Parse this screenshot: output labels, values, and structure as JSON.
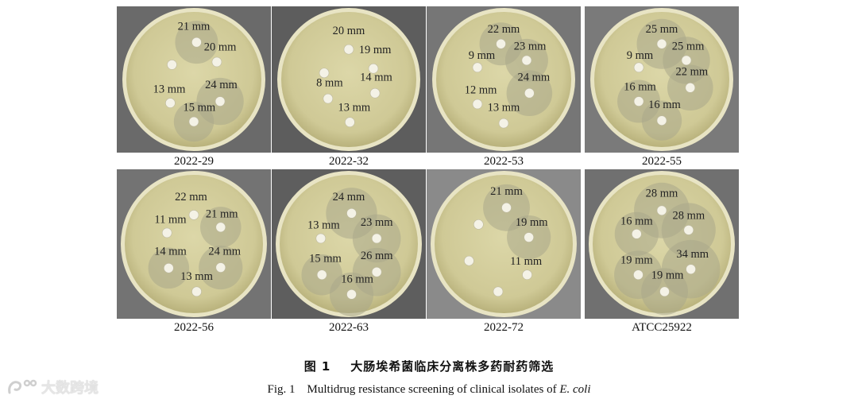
{
  "figure": {
    "caption_cn_label": "图 1",
    "caption_cn_title": "大肠埃希菌临床分离株多药耐药筛选",
    "caption_en_label": "Fig. 1",
    "caption_en_title_prefix": "Multidrug resistance screening of clinical isolates of ",
    "caption_en_title_italic": "E. coli",
    "watermark_text": "大数跨境",
    "watermark_icon": "brand-logo-icon"
  },
  "plates": [
    {
      "label": "2022-29",
      "zones": [
        {
          "text": "21 mm",
          "dx": 0.05,
          "dy": -0.68,
          "tx": 0.0,
          "ty": -0.98,
          "zone": 0.3
        },
        {
          "text": "20 mm",
          "dx": 0.42,
          "dy": -0.32,
          "tx": 0.48,
          "ty": -0.6,
          "zone": 0.0
        },
        {
          "text": "",
          "dx": -0.4,
          "dy": -0.27,
          "tx": 0,
          "ty": 0,
          "zone": 0.0
        },
        {
          "text": "13 mm",
          "dx": -0.43,
          "dy": 0.43,
          "tx": -0.45,
          "ty": 0.17,
          "zone": 0.0
        },
        {
          "text": "24 mm",
          "dx": 0.48,
          "dy": 0.4,
          "tx": 0.5,
          "ty": 0.09,
          "zone": 0.33
        },
        {
          "text": "15 mm",
          "dx": 0.0,
          "dy": 0.77,
          "tx": 0.1,
          "ty": 0.5,
          "zone": 0.28
        }
      ]
    },
    {
      "label": "2022-32",
      "zones": [
        {
          "text": "20 mm",
          "dx": 0.0,
          "dy": -0.55,
          "tx": 0.0,
          "ty": -0.9,
          "zone": 0.0
        },
        {
          "text": "19 mm",
          "dx": 0.45,
          "dy": -0.2,
          "tx": 0.48,
          "ty": -0.55,
          "zone": 0.0
        },
        {
          "text": "",
          "dx": -0.45,
          "dy": -0.12,
          "tx": 0,
          "ty": 0,
          "zone": 0.0
        },
        {
          "text": "8 mm",
          "dx": -0.38,
          "dy": 0.35,
          "tx": -0.35,
          "ty": 0.05,
          "zone": 0.0
        },
        {
          "text": "14 mm",
          "dx": 0.48,
          "dy": 0.25,
          "tx": 0.5,
          "ty": -0.05,
          "zone": 0.0
        },
        {
          "text": "13 mm",
          "dx": 0.02,
          "dy": 0.78,
          "tx": 0.1,
          "ty": 0.5,
          "zone": 0.0
        }
      ]
    },
    {
      "label": "2022-53",
      "zones": [
        {
          "text": "22 mm",
          "dx": -0.05,
          "dy": -0.65,
          "tx": 0.0,
          "ty": -0.93,
          "zone": 0.3
        },
        {
          "text": "23 mm",
          "dx": 0.42,
          "dy": -0.35,
          "tx": 0.48,
          "ty": -0.62,
          "zone": 0.3
        },
        {
          "text": "9 mm",
          "dx": -0.48,
          "dy": -0.22,
          "tx": -0.4,
          "ty": -0.45,
          "zone": 0.0
        },
        {
          "text": "12 mm",
          "dx": -0.48,
          "dy": 0.45,
          "tx": -0.42,
          "ty": 0.18,
          "zone": 0.0
        },
        {
          "text": "24 mm",
          "dx": 0.47,
          "dy": 0.25,
          "tx": 0.55,
          "ty": -0.05,
          "zone": 0.32
        },
        {
          "text": "13 mm",
          "dx": 0.0,
          "dy": 0.8,
          "tx": 0.0,
          "ty": 0.5,
          "zone": 0.0
        }
      ]
    },
    {
      "label": "2022-55",
      "zones": [
        {
          "text": "25 mm",
          "dx": 0.0,
          "dy": -0.65,
          "tx": 0.0,
          "ty": -0.93,
          "zone": 0.35
        },
        {
          "text": "25 mm",
          "dx": 0.45,
          "dy": -0.35,
          "tx": 0.48,
          "ty": -0.62,
          "zone": 0.33
        },
        {
          "text": "9 mm",
          "dx": -0.42,
          "dy": -0.22,
          "tx": -0.4,
          "ty": -0.45,
          "zone": 0.0
        },
        {
          "text": "16 mm",
          "dx": -0.42,
          "dy": 0.4,
          "tx": -0.4,
          "ty": 0.12,
          "zone": 0.3
        },
        {
          "text": "22 mm",
          "dx": 0.52,
          "dy": 0.15,
          "tx": 0.55,
          "ty": -0.15,
          "zone": 0.32
        },
        {
          "text": "16 mm",
          "dx": 0.0,
          "dy": 0.75,
          "tx": 0.05,
          "ty": 0.45,
          "zone": 0.28
        }
      ]
    },
    {
      "label": "2022-56",
      "zones": [
        {
          "text": "22 mm",
          "dx": 0.0,
          "dy": -0.52,
          "tx": -0.05,
          "ty": -0.85,
          "zone": 0.0
        },
        {
          "text": "21 mm",
          "dx": 0.48,
          "dy": -0.3,
          "tx": 0.5,
          "ty": -0.55,
          "zone": 0.28
        },
        {
          "text": "11 mm",
          "dx": -0.48,
          "dy": -0.2,
          "tx": -0.42,
          "ty": -0.45,
          "zone": 0.0
        },
        {
          "text": "14 mm",
          "dx": -0.45,
          "dy": 0.43,
          "tx": -0.42,
          "ty": 0.12,
          "zone": 0.28
        },
        {
          "text": "24 mm",
          "dx": 0.48,
          "dy": 0.42,
          "tx": 0.55,
          "ty": 0.12,
          "zone": 0.3
        },
        {
          "text": "13 mm",
          "dx": 0.05,
          "dy": 0.85,
          "tx": 0.05,
          "ty": 0.57,
          "zone": 0.0
        }
      ]
    },
    {
      "label": "2022-63",
      "zones": [
        {
          "text": "24 mm",
          "dx": 0.05,
          "dy": -0.55,
          "tx": 0.0,
          "ty": -0.85,
          "zone": 0.35
        },
        {
          "text": "23 mm",
          "dx": 0.5,
          "dy": -0.1,
          "tx": 0.5,
          "ty": -0.4,
          "zone": 0.33
        },
        {
          "text": "13 mm",
          "dx": -0.5,
          "dy": -0.1,
          "tx": -0.45,
          "ty": -0.35,
          "zone": 0.0
        },
        {
          "text": "15 mm",
          "dx": -0.48,
          "dy": 0.55,
          "tx": -0.42,
          "ty": 0.25,
          "zone": 0.28
        },
        {
          "text": "26 mm",
          "dx": 0.5,
          "dy": 0.5,
          "tx": 0.5,
          "ty": 0.2,
          "zone": 0.33
        },
        {
          "text": "16 mm",
          "dx": 0.05,
          "dy": 0.9,
          "tx": 0.15,
          "ty": 0.62,
          "zone": 0.3
        }
      ]
    },
    {
      "label": "2022-72",
      "zones": [
        {
          "text": "21 mm",
          "dx": 0.05,
          "dy": -0.65,
          "tx": 0.05,
          "ty": -0.95,
          "zone": 0.32
        },
        {
          "text": "19 mm",
          "dx": 0.45,
          "dy": -0.12,
          "tx": 0.5,
          "ty": -0.4,
          "zone": 0.3
        },
        {
          "text": "",
          "dx": -0.45,
          "dy": -0.35,
          "tx": 0,
          "ty": 0,
          "zone": 0.0
        },
        {
          "text": "",
          "dx": -0.62,
          "dy": 0.3,
          "tx": 0,
          "ty": 0,
          "zone": 0.0
        },
        {
          "text": "11 mm",
          "dx": 0.42,
          "dy": 0.55,
          "tx": 0.4,
          "ty": 0.3,
          "zone": 0.0
        },
        {
          "text": "",
          "dx": -0.1,
          "dy": 0.85,
          "tx": 0,
          "ty": 0,
          "zone": 0.0
        }
      ]
    },
    {
      "label": "ATCC25922",
      "zones": [
        {
          "text": "28 mm",
          "dx": 0.0,
          "dy": -0.6,
          "tx": 0.0,
          "ty": -0.92,
          "zone": 0.38
        },
        {
          "text": "28 mm",
          "dx": 0.48,
          "dy": -0.25,
          "tx": 0.48,
          "ty": -0.52,
          "zone": 0.37
        },
        {
          "text": "16 mm",
          "dx": -0.45,
          "dy": -0.18,
          "tx": -0.45,
          "ty": -0.42,
          "zone": 0.3
        },
        {
          "text": "19 mm",
          "dx": -0.42,
          "dy": 0.55,
          "tx": -0.45,
          "ty": 0.28,
          "zone": 0.33
        },
        {
          "text": "34 mm",
          "dx": 0.52,
          "dy": 0.45,
          "tx": 0.55,
          "ty": 0.17,
          "zone": 0.4
        },
        {
          "text": "19 mm",
          "dx": 0.05,
          "dy": 0.85,
          "tx": 0.1,
          "ty": 0.55,
          "zone": 0.32
        }
      ]
    }
  ]
}
